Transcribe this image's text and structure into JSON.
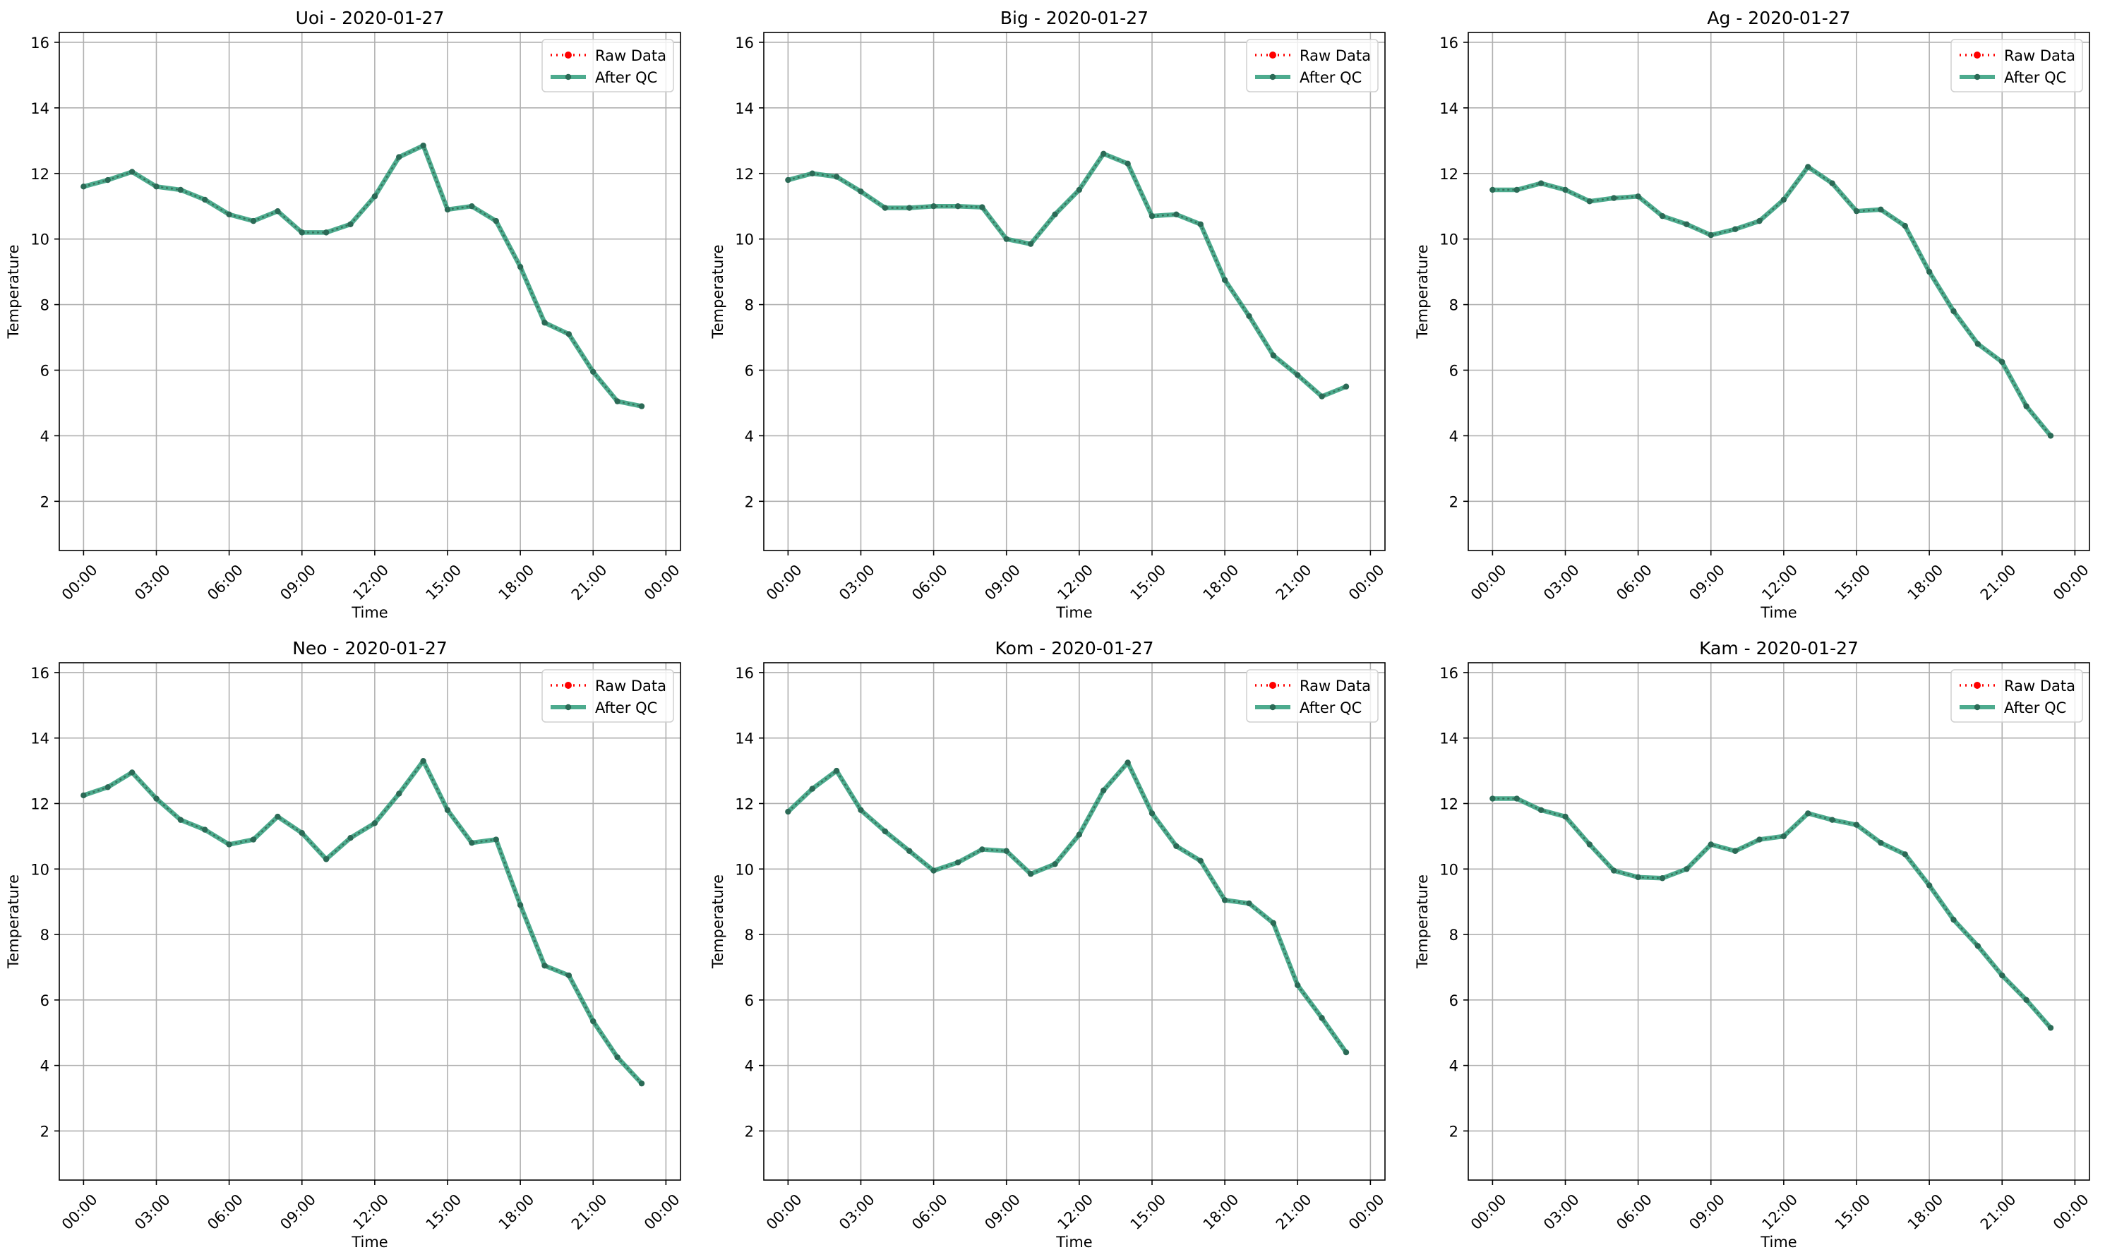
{
  "legend": {
    "raw_label": "Raw Data",
    "qc_label": "After QC",
    "placement": "upper right"
  },
  "colors": {
    "raw": "#ff0000",
    "qc_line": "#2e9c7a",
    "qc_marker": "#2b6a56",
    "grid": "#b0b0b0",
    "axes": "#000000"
  },
  "axes_common": {
    "xlabel": "Time",
    "ylabel": "Temperature",
    "ylim": [
      0.5,
      16.3
    ],
    "yticks": [
      2,
      4,
      6,
      8,
      10,
      12,
      14,
      16
    ],
    "xlim_hours": [
      -1,
      24.6
    ],
    "xticks_hours": [
      0,
      3,
      6,
      9,
      12,
      15,
      18,
      21,
      24
    ],
    "xtick_labels": [
      "00:00",
      "03:00",
      "06:00",
      "09:00",
      "12:00",
      "15:00",
      "18:00",
      "21:00",
      "00:00"
    ],
    "grid": true
  },
  "chart_data": [
    {
      "type": "line",
      "title": "Uoi - 2020-01-27",
      "x_hours": [
        0,
        1,
        2,
        3,
        4,
        5,
        6,
        7,
        8,
        9,
        10,
        11,
        12,
        13,
        14,
        15,
        16,
        17,
        18,
        19,
        20,
        21,
        22,
        23
      ],
      "series": [
        {
          "name": "Raw Data",
          "values": [
            11.6,
            11.8,
            12.05,
            11.6,
            11.5,
            11.2,
            10.75,
            10.55,
            10.85,
            10.2,
            10.2,
            10.45,
            11.3,
            12.5,
            12.85,
            10.9,
            11.0,
            10.55,
            9.15,
            7.45,
            7.1,
            5.95,
            5.05,
            4.9
          ]
        },
        {
          "name": "After QC",
          "values": [
            11.6,
            11.8,
            12.05,
            11.6,
            11.5,
            11.2,
            10.75,
            10.55,
            10.85,
            10.2,
            10.2,
            10.45,
            11.3,
            12.5,
            12.85,
            10.9,
            11.0,
            10.55,
            9.15,
            7.45,
            7.1,
            5.95,
            5.05,
            4.9
          ]
        }
      ]
    },
    {
      "type": "line",
      "title": "Big - 2020-01-27",
      "x_hours": [
        0,
        1,
        2,
        3,
        4,
        5,
        6,
        7,
        8,
        9,
        10,
        11,
        12,
        13,
        14,
        15,
        16,
        17,
        18,
        19,
        20,
        21,
        22,
        23
      ],
      "series": [
        {
          "name": "Raw Data",
          "values": [
            11.8,
            12.0,
            11.9,
            11.45,
            10.95,
            10.95,
            11.0,
            11.0,
            10.97,
            10.0,
            9.85,
            10.75,
            11.5,
            12.6,
            12.3,
            10.7,
            10.75,
            10.45,
            8.75,
            7.65,
            6.45,
            5.85,
            5.2,
            5.5
          ]
        },
        {
          "name": "After QC",
          "values": [
            11.8,
            12.0,
            11.9,
            11.45,
            10.95,
            10.95,
            11.0,
            11.0,
            10.97,
            10.0,
            9.85,
            10.75,
            11.5,
            12.6,
            12.3,
            10.7,
            10.75,
            10.45,
            8.75,
            7.65,
            6.45,
            5.85,
            5.2,
            5.5
          ]
        }
      ]
    },
    {
      "type": "line",
      "title": "Ag - 2020-01-27",
      "x_hours": [
        0,
        1,
        2,
        3,
        4,
        5,
        6,
        7,
        8,
        9,
        10,
        11,
        12,
        13,
        14,
        15,
        16,
        17,
        18,
        19,
        20,
        21,
        22,
        23
      ],
      "series": [
        {
          "name": "Raw Data",
          "values": [
            11.5,
            11.5,
            11.7,
            11.5,
            11.15,
            11.25,
            11.3,
            10.7,
            10.45,
            10.12,
            10.3,
            10.55,
            11.2,
            12.2,
            11.7,
            10.85,
            10.9,
            10.4,
            9.0,
            7.8,
            6.8,
            6.25,
            4.9,
            4.0
          ]
        },
        {
          "name": "After QC",
          "values": [
            11.5,
            11.5,
            11.7,
            11.5,
            11.15,
            11.25,
            11.3,
            10.7,
            10.45,
            10.12,
            10.3,
            10.55,
            11.2,
            12.2,
            11.7,
            10.85,
            10.9,
            10.4,
            9.0,
            7.8,
            6.8,
            6.25,
            4.9,
            4.0
          ]
        }
      ]
    },
    {
      "type": "line",
      "title": "Neo - 2020-01-27",
      "x_hours": [
        0,
        1,
        2,
        3,
        4,
        5,
        6,
        7,
        8,
        9,
        10,
        11,
        12,
        13,
        14,
        15,
        16,
        17,
        18,
        19,
        20,
        21,
        22,
        23
      ],
      "series": [
        {
          "name": "Raw Data",
          "values": [
            12.25,
            12.5,
            12.95,
            12.15,
            11.5,
            11.2,
            10.75,
            10.9,
            11.6,
            11.1,
            10.3,
            10.95,
            11.4,
            12.3,
            13.3,
            11.8,
            10.8,
            10.9,
            8.9,
            7.05,
            6.75,
            5.35,
            4.25,
            3.45
          ]
        },
        {
          "name": "After QC",
          "values": [
            12.25,
            12.5,
            12.95,
            12.15,
            11.5,
            11.2,
            10.75,
            10.9,
            11.6,
            11.1,
            10.3,
            10.95,
            11.4,
            12.3,
            13.3,
            11.8,
            10.8,
            10.9,
            8.9,
            7.05,
            6.75,
            5.35,
            4.25,
            3.45
          ]
        }
      ]
    },
    {
      "type": "line",
      "title": "Kom - 2020-01-27",
      "x_hours": [
        0,
        1,
        2,
        3,
        4,
        5,
        6,
        7,
        8,
        9,
        10,
        11,
        12,
        13,
        14,
        15,
        16,
        17,
        18,
        19,
        20,
        21,
        22,
        23
      ],
      "series": [
        {
          "name": "Raw Data",
          "values": [
            11.75,
            12.45,
            13.0,
            11.8,
            11.15,
            10.55,
            9.95,
            10.2,
            10.6,
            10.55,
            9.85,
            10.15,
            11.05,
            12.4,
            13.25,
            11.7,
            10.7,
            10.25,
            9.05,
            8.95,
            8.35,
            6.45,
            5.45,
            4.4
          ]
        },
        {
          "name": "After QC",
          "values": [
            11.75,
            12.45,
            13.0,
            11.8,
            11.15,
            10.55,
            9.95,
            10.2,
            10.6,
            10.55,
            9.85,
            10.15,
            11.05,
            12.4,
            13.25,
            11.7,
            10.7,
            10.25,
            9.05,
            8.95,
            8.35,
            6.45,
            5.45,
            4.4
          ]
        }
      ]
    },
    {
      "type": "line",
      "title": "Kam - 2020-01-27",
      "x_hours": [
        0,
        1,
        2,
        3,
        4,
        5,
        6,
        7,
        8,
        9,
        10,
        11,
        12,
        13,
        14,
        15,
        16,
        17,
        18,
        19,
        20,
        21,
        22,
        23
      ],
      "series": [
        {
          "name": "Raw Data",
          "values": [
            12.15,
            12.15,
            11.8,
            11.6,
            10.75,
            9.95,
            9.75,
            9.72,
            10.0,
            10.75,
            10.55,
            10.9,
            11.0,
            11.7,
            11.5,
            11.35,
            10.8,
            10.45,
            9.5,
            8.45,
            7.65,
            6.75,
            6.0,
            5.15
          ]
        },
        {
          "name": "After QC",
          "values": [
            12.15,
            12.15,
            11.8,
            11.6,
            10.75,
            9.95,
            9.75,
            9.72,
            10.0,
            10.75,
            10.55,
            10.9,
            11.0,
            11.7,
            11.5,
            11.35,
            10.8,
            10.45,
            9.5,
            8.45,
            7.65,
            6.75,
            6.0,
            5.15
          ]
        }
      ]
    }
  ]
}
